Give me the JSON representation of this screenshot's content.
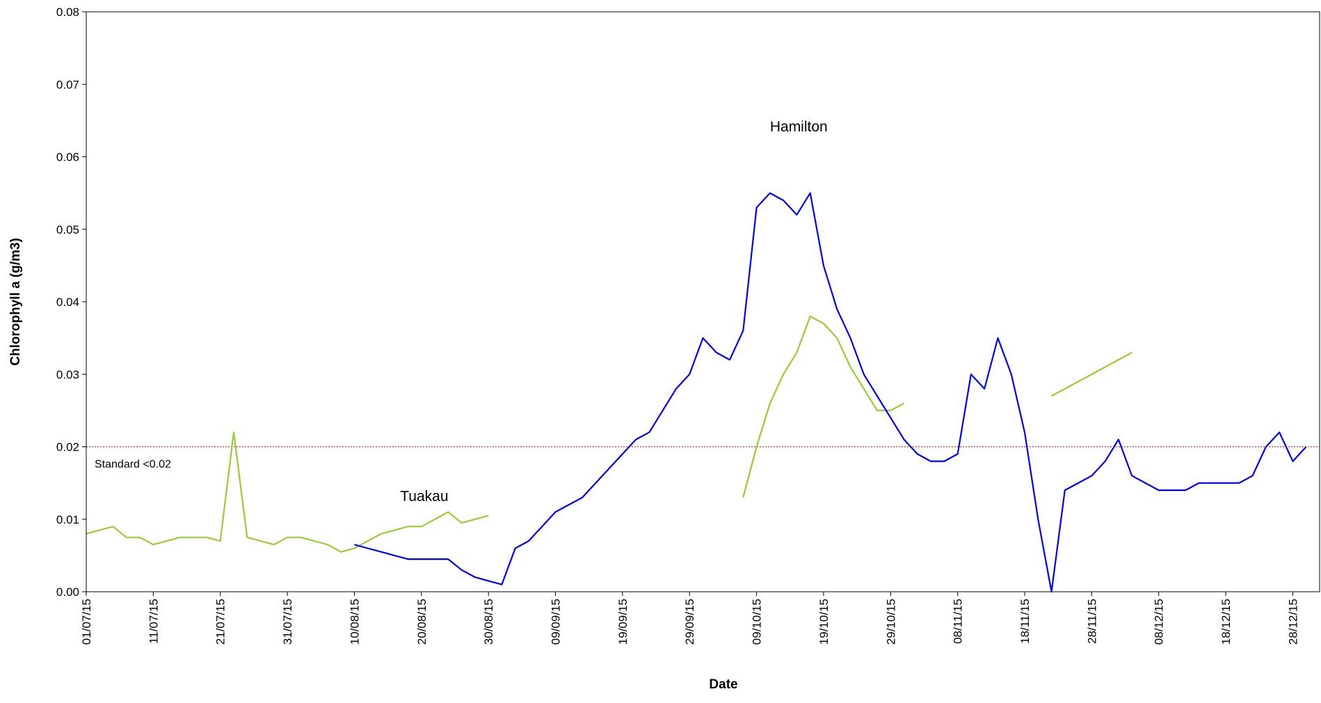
{
  "chart_data": {
    "type": "line",
    "x_label": "Date",
    "y_label": "Chlorophyll a (g/m3)",
    "x": [
      "01/07/15",
      "03/07/15",
      "05/07/15",
      "07/07/15",
      "09/07/15",
      "11/07/15",
      "13/07/15",
      "15/07/15",
      "17/07/15",
      "19/07/15",
      "21/07/15",
      "23/07/15",
      "25/07/15",
      "27/07/15",
      "29/07/15",
      "31/07/15",
      "02/08/15",
      "04/08/15",
      "06/08/15",
      "08/08/15",
      "10/08/15",
      "12/08/15",
      "14/08/15",
      "16/08/15",
      "18/08/15",
      "20/08/15",
      "22/08/15",
      "24/08/15",
      "26/08/15",
      "28/08/15",
      "30/08/15",
      "01/09/15",
      "03/09/15",
      "05/09/15",
      "07/09/15",
      "09/09/15",
      "11/09/15",
      "13/09/15",
      "15/09/15",
      "17/09/15",
      "19/09/15",
      "21/09/15",
      "23/09/15",
      "25/09/15",
      "27/09/15",
      "29/09/15",
      "01/10/15",
      "03/10/15",
      "05/10/15",
      "07/10/15",
      "09/10/15",
      "11/10/15",
      "13/10/15",
      "15/10/15",
      "17/10/15",
      "19/10/15",
      "21/10/15",
      "23/10/15",
      "25/10/15",
      "27/10/15",
      "29/10/15",
      "31/10/15",
      "02/11/15",
      "04/11/15",
      "06/11/15",
      "08/11/15",
      "10/11/15",
      "12/11/15",
      "14/11/15",
      "16/11/15",
      "18/11/15",
      "20/11/15",
      "22/11/15",
      "24/11/15",
      "26/11/15",
      "28/11/15",
      "30/11/15",
      "02/12/15",
      "04/12/15",
      "06/12/15",
      "08/12/15",
      "10/12/15",
      "12/12/15",
      "14/12/15",
      "16/12/15",
      "18/12/15",
      "20/12/15",
      "22/12/15",
      "24/12/15",
      "26/12/15",
      "28/12/15",
      "30/12/15"
    ],
    "series": [
      {
        "name": "Tuakau",
        "color": "#99cc33",
        "values": [
          0.008,
          0.0085,
          0.009,
          0.0075,
          0.0075,
          0.0065,
          0.007,
          0.0075,
          0.0075,
          0.0075,
          0.007,
          0.022,
          0.0075,
          0.007,
          0.0065,
          0.0075,
          0.0075,
          0.007,
          0.0065,
          0.0055,
          0.006,
          0.007,
          0.008,
          0.0085,
          0.009,
          0.009,
          0.01,
          0.011,
          0.0095,
          0.01,
          0.0105,
          null,
          null,
          null,
          null,
          null,
          null,
          null,
          null,
          null,
          null,
          null,
          null,
          null,
          null,
          null,
          null,
          null,
          null,
          0.013,
          0.02,
          0.026,
          0.03,
          0.033,
          0.038,
          0.037,
          0.035,
          0.031,
          0.028,
          0.025,
          0.025,
          0.026,
          null,
          null,
          null,
          null,
          null,
          null,
          null,
          null,
          null,
          null,
          0.027,
          0.028,
          0.029,
          0.03,
          0.031,
          0.032,
          0.033,
          null,
          null,
          null,
          null,
          null,
          null,
          null,
          null,
          null,
          null,
          null,
          null,
          null
        ]
      },
      {
        "name": "Hamilton",
        "color": "#0000ff",
        "values": [
          null,
          null,
          null,
          null,
          null,
          null,
          null,
          null,
          null,
          null,
          null,
          null,
          null,
          null,
          null,
          null,
          null,
          null,
          null,
          null,
          0.0065,
          0.006,
          0.0055,
          0.005,
          0.0045,
          0.0045,
          0.0045,
          0.0045,
          0.003,
          0.002,
          0.0015,
          0.001,
          0.006,
          0.007,
          0.009,
          0.011,
          0.012,
          0.013,
          0.015,
          0.017,
          0.019,
          0.021,
          0.022,
          0.025,
          0.028,
          0.03,
          0.035,
          0.033,
          0.032,
          0.036,
          0.053,
          0.055,
          0.054,
          0.052,
          0.055,
          0.045,
          0.039,
          0.035,
          0.03,
          0.027,
          0.024,
          0.021,
          0.019,
          0.018,
          0.018,
          0.019,
          0.03,
          0.028,
          0.035,
          0.03,
          0.022,
          0.01,
          0.0,
          0.014,
          0.015,
          0.016,
          0.018,
          0.021,
          0.016,
          0.015,
          0.014,
          0.014,
          0.014,
          0.015,
          0.015,
          0.015,
          0.015,
          0.016,
          0.02,
          0.022,
          0.018,
          0.02
        ]
      }
    ],
    "xlim": [
      "01/07/15",
      "01/01/16"
    ],
    "xticks": [
      "01/07/15",
      "11/07/15",
      "21/07/15",
      "31/07/15",
      "10/08/15",
      "20/08/15",
      "30/08/15",
      "09/09/15",
      "19/09/15",
      "29/09/15",
      "09/10/15",
      "19/10/15",
      "29/10/15",
      "08/11/15",
      "18/11/15",
      "28/11/15",
      "08/12/15",
      "18/12/15",
      "28/12/15"
    ],
    "ylim": [
      0,
      0.08
    ],
    "yticks": [
      {
        "value": 0,
        "label": "0.00"
      },
      {
        "value": 0.01,
        "label": "0.01"
      },
      {
        "value": 0.02,
        "label": "0.02"
      },
      {
        "value": 0.03,
        "label": "0.03"
      },
      {
        "value": 0.04,
        "label": "0.04"
      },
      {
        "value": 0.05,
        "label": "0.05"
      },
      {
        "value": 0.06,
        "label": "0.06"
      },
      {
        "value": 0.07,
        "label": "0.07"
      },
      {
        "value": 0.08,
        "label": "0.08"
      }
    ],
    "reference_line": {
      "value": 0.02,
      "label": "Standard <0.02",
      "color": "#ff0000"
    },
    "annotations": [
      "Tuakau",
      "Hamilton"
    ]
  }
}
